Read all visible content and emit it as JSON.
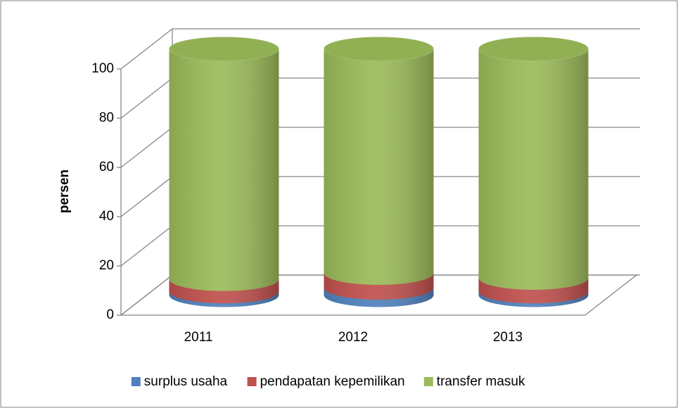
{
  "chart_data": {
    "type": "cylinder3d_stacked",
    "y_label": "persen",
    "categories": [
      "2011",
      "2012",
      "2013"
    ],
    "series": [
      {
        "name": "surplus usaha",
        "color": "#4f81bd",
        "values": [
          1.5,
          3,
          1.5
        ]
      },
      {
        "name": "pendapatan kepemilikan",
        "color": "#c0504d",
        "values": [
          5,
          6,
          5.5
        ]
      },
      {
        "name": "transfer masuk",
        "color": "#9bbb59",
        "values": [
          93.5,
          91,
          93
        ]
      }
    ],
    "ylim": [
      0,
      100
    ],
    "yticks": [
      0,
      20,
      40,
      60,
      80,
      100
    ],
    "grid": true,
    "legend": "bottom"
  }
}
